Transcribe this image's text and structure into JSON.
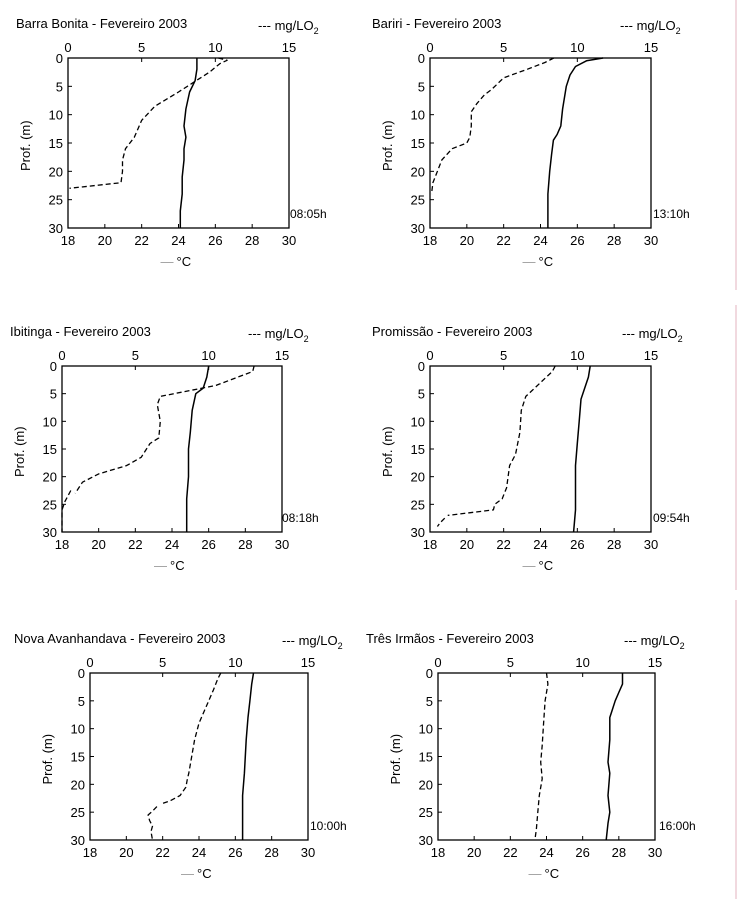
{
  "chart_data": [
    {
      "type": "line",
      "title": "Barra Bonita - Fevereiro 2003",
      "ylabel": "Prof. (m)",
      "xlabel_bottom": "°C",
      "xlabel_top": "mg/LO",
      "xlabel_top_sub": "2",
      "time": "08:05h",
      "ylim": [
        0,
        30
      ],
      "yticks": [
        "0",
        "5",
        "10",
        "15",
        "20",
        "25",
        "30"
      ],
      "temp_lim": [
        18,
        30
      ],
      "temp_ticks": [
        "18",
        "20",
        "22",
        "24",
        "26",
        "28",
        "30"
      ],
      "do_lim": [
        0,
        15
      ],
      "do_ticks": [
        "0",
        "5",
        "10",
        "15"
      ],
      "series": [
        {
          "axis": "temp",
          "style": "solid",
          "values": [
            [
              25.0,
              0
            ],
            [
              25.0,
              2
            ],
            [
              24.9,
              4
            ],
            [
              24.6,
              6
            ],
            [
              24.4,
              9
            ],
            [
              24.3,
              12
            ],
            [
              24.4,
              14
            ],
            [
              24.3,
              16
            ],
            [
              24.3,
              18
            ],
            [
              24.2,
              21
            ],
            [
              24.2,
              24
            ],
            [
              24.1,
              27
            ],
            [
              24.1,
              30
            ]
          ]
        },
        {
          "axis": "do",
          "style": "dashed",
          "values": [
            [
              10.2,
              0
            ],
            [
              10.8,
              0.4
            ],
            [
              10.3,
              1
            ],
            [
              9.6,
              2.5
            ],
            [
              7.5,
              6
            ],
            [
              5.9,
              8.5
            ],
            [
              5.0,
              11
            ],
            [
              4.5,
              14
            ],
            [
              3.9,
              16
            ],
            [
              3.7,
              18
            ],
            [
              3.7,
              20
            ],
            [
              3.6,
              22
            ],
            [
              0.1,
              23
            ]
          ]
        }
      ]
    },
    {
      "type": "line",
      "title": "Bariri - Fevereiro 2003",
      "ylabel": "Prof. (m)",
      "xlabel_bottom": "°C",
      "xlabel_top": "mg/LO",
      "xlabel_top_sub": "2",
      "time": "13:10h",
      "ylim": [
        0,
        30
      ],
      "yticks": [
        "0",
        "5",
        "10",
        "15",
        "20",
        "25",
        "30"
      ],
      "temp_lim": [
        18,
        30
      ],
      "temp_ticks": [
        "18",
        "20",
        "22",
        "24",
        "26",
        "28",
        "30"
      ],
      "do_lim": [
        0,
        15
      ],
      "do_ticks": [
        "0",
        "5",
        "10",
        "15"
      ],
      "series": [
        {
          "axis": "temp",
          "style": "solid",
          "values": [
            [
              27.4,
              0
            ],
            [
              26.5,
              0.5
            ],
            [
              25.9,
              1.5
            ],
            [
              25.6,
              3
            ],
            [
              25.4,
              5
            ],
            [
              25.2,
              9
            ],
            [
              25.1,
              12
            ],
            [
              24.9,
              13.5
            ],
            [
              24.7,
              14.5
            ],
            [
              24.6,
              17
            ],
            [
              24.5,
              20
            ],
            [
              24.4,
              24
            ],
            [
              24.4,
              28
            ],
            [
              24.4,
              30
            ]
          ]
        },
        {
          "axis": "do",
          "style": "dashed",
          "values": [
            [
              8.4,
              0
            ],
            [
              7.8,
              0.8
            ],
            [
              6.6,
              2
            ],
            [
              5.0,
              3.5
            ],
            [
              4.2,
              5.5
            ],
            [
              3.7,
              6.5
            ],
            [
              3.2,
              8
            ],
            [
              2.8,
              9.5
            ],
            [
              2.8,
              12
            ],
            [
              2.7,
              14
            ],
            [
              2.5,
              15
            ],
            [
              1.5,
              16
            ],
            [
              0.8,
              18
            ],
            [
              0.5,
              20
            ],
            [
              0.2,
              22
            ],
            [
              0.1,
              24
            ]
          ]
        }
      ]
    },
    {
      "type": "line",
      "title": "Ibitinga - Fevereiro 2003",
      "ylabel": "Prof. (m)",
      "xlabel_bottom": "°C",
      "xlabel_top": "mg/LO",
      "xlabel_top_sub": "2",
      "time": "08:18h",
      "ylim": [
        0,
        30
      ],
      "yticks": [
        "0",
        "5",
        "10",
        "15",
        "20",
        "25",
        "30"
      ],
      "temp_lim": [
        18,
        30
      ],
      "temp_ticks": [
        "18",
        "20",
        "22",
        "24",
        "26",
        "28",
        "30"
      ],
      "do_lim": [
        0,
        15
      ],
      "do_ticks": [
        "0",
        "5",
        "10",
        "15"
      ],
      "series": [
        {
          "axis": "temp",
          "style": "solid",
          "values": [
            [
              26.0,
              0
            ],
            [
              25.9,
              2
            ],
            [
              25.7,
              4
            ],
            [
              25.3,
              5
            ],
            [
              25.1,
              8
            ],
            [
              25.0,
              12
            ],
            [
              24.9,
              15
            ],
            [
              24.9,
              20
            ],
            [
              24.8,
              24
            ],
            [
              24.8,
              27
            ],
            [
              24.8,
              30
            ]
          ]
        },
        {
          "axis": "do",
          "style": "dashed",
          "values": [
            [
              13.1,
              0
            ],
            [
              13.0,
              1
            ],
            [
              11.5,
              2.5
            ],
            [
              10.5,
              3.5
            ],
            [
              6.7,
              5.5
            ],
            [
              6.5,
              7
            ],
            [
              6.7,
              10
            ],
            [
              6.6,
              13
            ],
            [
              6.0,
              14
            ],
            [
              5.4,
              16.5
            ],
            [
              4.4,
              18
            ],
            [
              2.5,
              19.5
            ],
            [
              1.4,
              21
            ],
            [
              0.9,
              23
            ]
          ]
        },
        {
          "axis": "do",
          "style": "dashed",
          "values": [
            [
              0.6,
              22.5
            ],
            [
              0.2,
              24.5
            ],
            [
              0.0,
              26
            ],
            [
              0.0,
              30
            ]
          ]
        }
      ]
    },
    {
      "type": "line",
      "title": "Promissão - Fevereiro 2003",
      "ylabel": "Prof. (m)",
      "xlabel_bottom": "°C",
      "xlabel_top": "mg/LO",
      "xlabel_top_sub": "2",
      "time": "09:54h",
      "ylim": [
        0,
        30
      ],
      "yticks": [
        "0",
        "5",
        "10",
        "15",
        "20",
        "25",
        "30"
      ],
      "temp_lim": [
        18,
        30
      ],
      "temp_ticks": [
        "18",
        "20",
        "22",
        "24",
        "26",
        "28",
        "30"
      ],
      "do_lim": [
        0,
        15
      ],
      "do_ticks": [
        "0",
        "5",
        "10",
        "15"
      ],
      "series": [
        {
          "axis": "temp",
          "style": "solid",
          "values": [
            [
              26.7,
              0
            ],
            [
              26.6,
              2
            ],
            [
              26.4,
              4
            ],
            [
              26.2,
              6
            ],
            [
              26.1,
              10
            ],
            [
              26.0,
              14
            ],
            [
              25.9,
              18
            ],
            [
              25.9,
              22
            ],
            [
              25.9,
              26
            ],
            [
              25.8,
              30
            ]
          ]
        },
        {
          "axis": "do",
          "style": "dashed",
          "values": [
            [
              8.5,
              0
            ],
            [
              8.3,
              1
            ],
            [
              7.5,
              3
            ],
            [
              6.9,
              4.5
            ],
            [
              6.5,
              5.5
            ],
            [
              6.2,
              8
            ],
            [
              6.1,
              12
            ],
            [
              5.8,
              16
            ],
            [
              5.4,
              18
            ],
            [
              5.2,
              22
            ],
            [
              4.9,
              24
            ],
            [
              4.4,
              25
            ],
            [
              4.3,
              26
            ],
            [
              1.2,
              27
            ]
          ]
        },
        {
          "axis": "do",
          "style": "dashed",
          "values": [
            [
              1.0,
              27.5
            ],
            [
              0.7,
              28.3
            ],
            [
              0.5,
              29
            ]
          ]
        }
      ]
    },
    {
      "type": "line",
      "title": "Nova Avanhandava - Fevereiro 2003",
      "ylabel": "Prof. (m)",
      "xlabel_bottom": "°C",
      "xlabel_top": "mg/LO",
      "xlabel_top_sub": "2",
      "time": "10:00h",
      "ylim": [
        0,
        30
      ],
      "yticks": [
        "0",
        "5",
        "10",
        "15",
        "20",
        "25",
        "30"
      ],
      "temp_lim": [
        18,
        30
      ],
      "temp_ticks": [
        "18",
        "20",
        "22",
        "24",
        "26",
        "28",
        "30"
      ],
      "do_lim": [
        0,
        15
      ],
      "do_ticks": [
        "0",
        "5",
        "10",
        "15"
      ],
      "series": [
        {
          "axis": "temp",
          "style": "solid",
          "values": [
            [
              27.0,
              0
            ],
            [
              26.9,
              2
            ],
            [
              26.8,
              5
            ],
            [
              26.7,
              8
            ],
            [
              26.6,
              12
            ],
            [
              26.5,
              18
            ],
            [
              26.4,
              22
            ],
            [
              26.4,
              24
            ],
            [
              26.4,
              26
            ],
            [
              26.4,
              30
            ]
          ]
        },
        {
          "axis": "do",
          "style": "dashed",
          "values": [
            [
              9.0,
              0
            ],
            [
              8.8,
              1
            ],
            [
              8.5,
              3
            ],
            [
              8.0,
              6
            ],
            [
              7.5,
              9
            ],
            [
              7.2,
              12
            ],
            [
              7.0,
              15
            ],
            [
              6.8,
              18
            ],
            [
              6.7,
              19
            ],
            [
              6.6,
              20.5
            ],
            [
              6.2,
              22
            ],
            [
              5.5,
              23
            ],
            [
              4.9,
              23.5
            ]
          ]
        },
        {
          "axis": "do",
          "style": "dashed",
          "values": [
            [
              4.6,
              24
            ],
            [
              4.3,
              24.8
            ],
            [
              4.0,
              25.5
            ],
            [
              4.1,
              26.5
            ],
            [
              4.3,
              27.5
            ],
            [
              4.2,
              28.5
            ],
            [
              4.3,
              30
            ]
          ]
        }
      ]
    },
    {
      "type": "line",
      "title": "Três Irmãos - Fevereiro 2003",
      "ylabel": "Prof. (m)",
      "xlabel_bottom": "°C",
      "xlabel_top": "mg/LO",
      "xlabel_top_sub": "2",
      "time": "16:00h",
      "ylim": [
        0,
        30
      ],
      "yticks": [
        "0",
        "5",
        "10",
        "15",
        "20",
        "25",
        "30"
      ],
      "temp_lim": [
        18,
        30
      ],
      "temp_ticks": [
        "18",
        "20",
        "22",
        "24",
        "26",
        "28",
        "30"
      ],
      "do_lim": [
        0,
        15
      ],
      "do_ticks": [
        "0",
        "5",
        "10",
        "15"
      ],
      "series": [
        {
          "axis": "temp",
          "style": "solid",
          "values": [
            [
              28.2,
              0
            ],
            [
              28.2,
              2
            ],
            [
              28.0,
              3.5
            ],
            [
              27.8,
              5
            ],
            [
              27.6,
              7
            ],
            [
              27.5,
              8
            ],
            [
              27.5,
              12
            ],
            [
              27.4,
              16
            ],
            [
              27.5,
              18
            ],
            [
              27.4,
              22
            ],
            [
              27.5,
              25
            ],
            [
              27.4,
              27
            ],
            [
              27.3,
              30
            ]
          ]
        },
        {
          "axis": "do",
          "style": "dashed",
          "values": [
            [
              7.5,
              0
            ],
            [
              7.6,
              2
            ],
            [
              7.4,
              5
            ],
            [
              7.3,
              9
            ],
            [
              7.2,
              13
            ],
            [
              7.1,
              16
            ],
            [
              7.2,
              19
            ],
            [
              7.0,
              22
            ],
            [
              6.9,
              25
            ],
            [
              6.8,
              28
            ],
            [
              6.7,
              30
            ]
          ]
        }
      ]
    }
  ]
}
